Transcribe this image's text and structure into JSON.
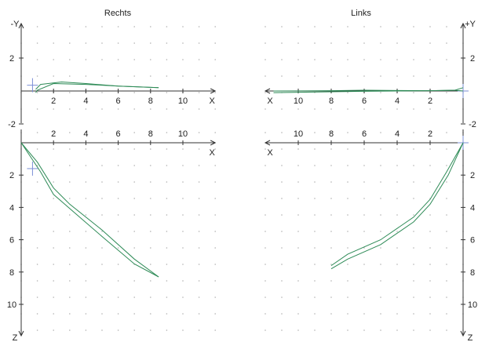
{
  "chart_data": [
    {
      "type": "line",
      "panel": "top-left",
      "title": "Rechts",
      "x_axis_label": "X",
      "y_axis_label": "-Y",
      "x_ticks": [
        2,
        4,
        6,
        8,
        10
      ],
      "y_ticks": [
        2,
        -2
      ],
      "xlim": [
        0,
        12
      ],
      "ylim": [
        -2,
        4
      ],
      "grid": "dots",
      "series": [
        {
          "color": "#2e8b57",
          "points": [
            [
              0.9,
              -0.1
            ],
            [
              1.0,
              0.05
            ],
            [
              2.0,
              0.45
            ],
            [
              4.0,
              0.4
            ],
            [
              6.0,
              0.3
            ],
            [
              8.5,
              0.2
            ]
          ]
        },
        {
          "color": "#2e8b57",
          "points": [
            [
              0.9,
              0.1
            ],
            [
              1.2,
              0.4
            ],
            [
              2.5,
              0.55
            ],
            [
              4.0,
              0.45
            ],
            [
              6.0,
              0.3
            ],
            [
              8.5,
              0.2
            ]
          ]
        }
      ],
      "marker": {
        "color": "#7b8fd6",
        "x": 0.7,
        "y": 0.35
      }
    },
    {
      "type": "line",
      "panel": "top-right",
      "title": "Links",
      "x_axis_label": "X",
      "y_axis_label": "+Y",
      "x_ticks": [
        10,
        8,
        6,
        4,
        2
      ],
      "y_ticks": [
        2,
        -2
      ],
      "xlim": [
        12,
        0
      ],
      "ylim": [
        -2,
        4
      ],
      "grid": "dots",
      "series": [
        {
          "color": "#2e8b57",
          "points": [
            [
              11.5,
              -0.1
            ],
            [
              8,
              -0.05
            ],
            [
              6,
              -0.02
            ],
            [
              4,
              0.0
            ],
            [
              2,
              0.02
            ],
            [
              0.5,
              0.05
            ],
            [
              0,
              0.2
            ]
          ]
        },
        {
          "color": "#2e8b57",
          "points": [
            [
              11.5,
              0.0
            ],
            [
              8,
              0.02
            ],
            [
              6,
              0.05
            ],
            [
              4,
              0.03
            ],
            [
              2,
              0.02
            ],
            [
              0.5,
              0.05
            ],
            [
              0,
              0.0
            ]
          ]
        }
      ],
      "marker": {
        "color": "#7b8fd6",
        "x": 0.0,
        "y": 0.0
      }
    },
    {
      "type": "line",
      "panel": "bottom-left",
      "x_axis_label": "X",
      "y_axis_label": "Z",
      "x_ticks": [
        2,
        4,
        6,
        8,
        10
      ],
      "y_ticks": [
        2,
        4,
        6,
        8,
        10
      ],
      "xlim": [
        0,
        12
      ],
      "ylim": [
        0,
        12
      ],
      "grid": "dots",
      "series": [
        {
          "color": "#2e8b57",
          "points": [
            [
              0,
              0
            ],
            [
              1,
              1.2
            ],
            [
              2,
              2.8
            ],
            [
              3,
              3.8
            ],
            [
              5,
              5.4
            ],
            [
              7,
              7.2
            ],
            [
              8.5,
              8.3
            ]
          ]
        },
        {
          "color": "#2e8b57",
          "points": [
            [
              0,
              0
            ],
            [
              1.2,
              1.8
            ],
            [
              2,
              3.2
            ],
            [
              3.5,
              4.5
            ],
            [
              5,
              5.8
            ],
            [
              7,
              7.5
            ],
            [
              8.5,
              8.3
            ]
          ]
        }
      ],
      "marker": {
        "color": "#7b8fd6",
        "x": 0.7,
        "y": 1.6
      }
    },
    {
      "type": "line",
      "panel": "bottom-right",
      "x_axis_label": "X",
      "y_axis_label": "Z",
      "x_ticks": [
        10,
        8,
        6,
        4,
        2
      ],
      "y_ticks": [
        2,
        4,
        6,
        8,
        10
      ],
      "xlim": [
        12,
        0
      ],
      "ylim": [
        0,
        12
      ],
      "grid": "dots",
      "series": [
        {
          "color": "#2e8b57",
          "points": [
            [
              0,
              0
            ],
            [
              1,
              1.8
            ],
            [
              2,
              3.5
            ],
            [
              3,
              4.6
            ],
            [
              5,
              6.0
            ],
            [
              7,
              6.9
            ],
            [
              8,
              7.6
            ]
          ]
        },
        {
          "color": "#2e8b57",
          "points": [
            [
              0,
              0
            ],
            [
              0.9,
              2.0
            ],
            [
              2,
              3.8
            ],
            [
              3,
              4.9
            ],
            [
              5,
              6.3
            ],
            [
              7,
              7.2
            ],
            [
              8,
              7.8
            ]
          ]
        }
      ],
      "marker": {
        "color": "#7b8fd6",
        "x": 0.0,
        "y": 0.0
      }
    }
  ]
}
